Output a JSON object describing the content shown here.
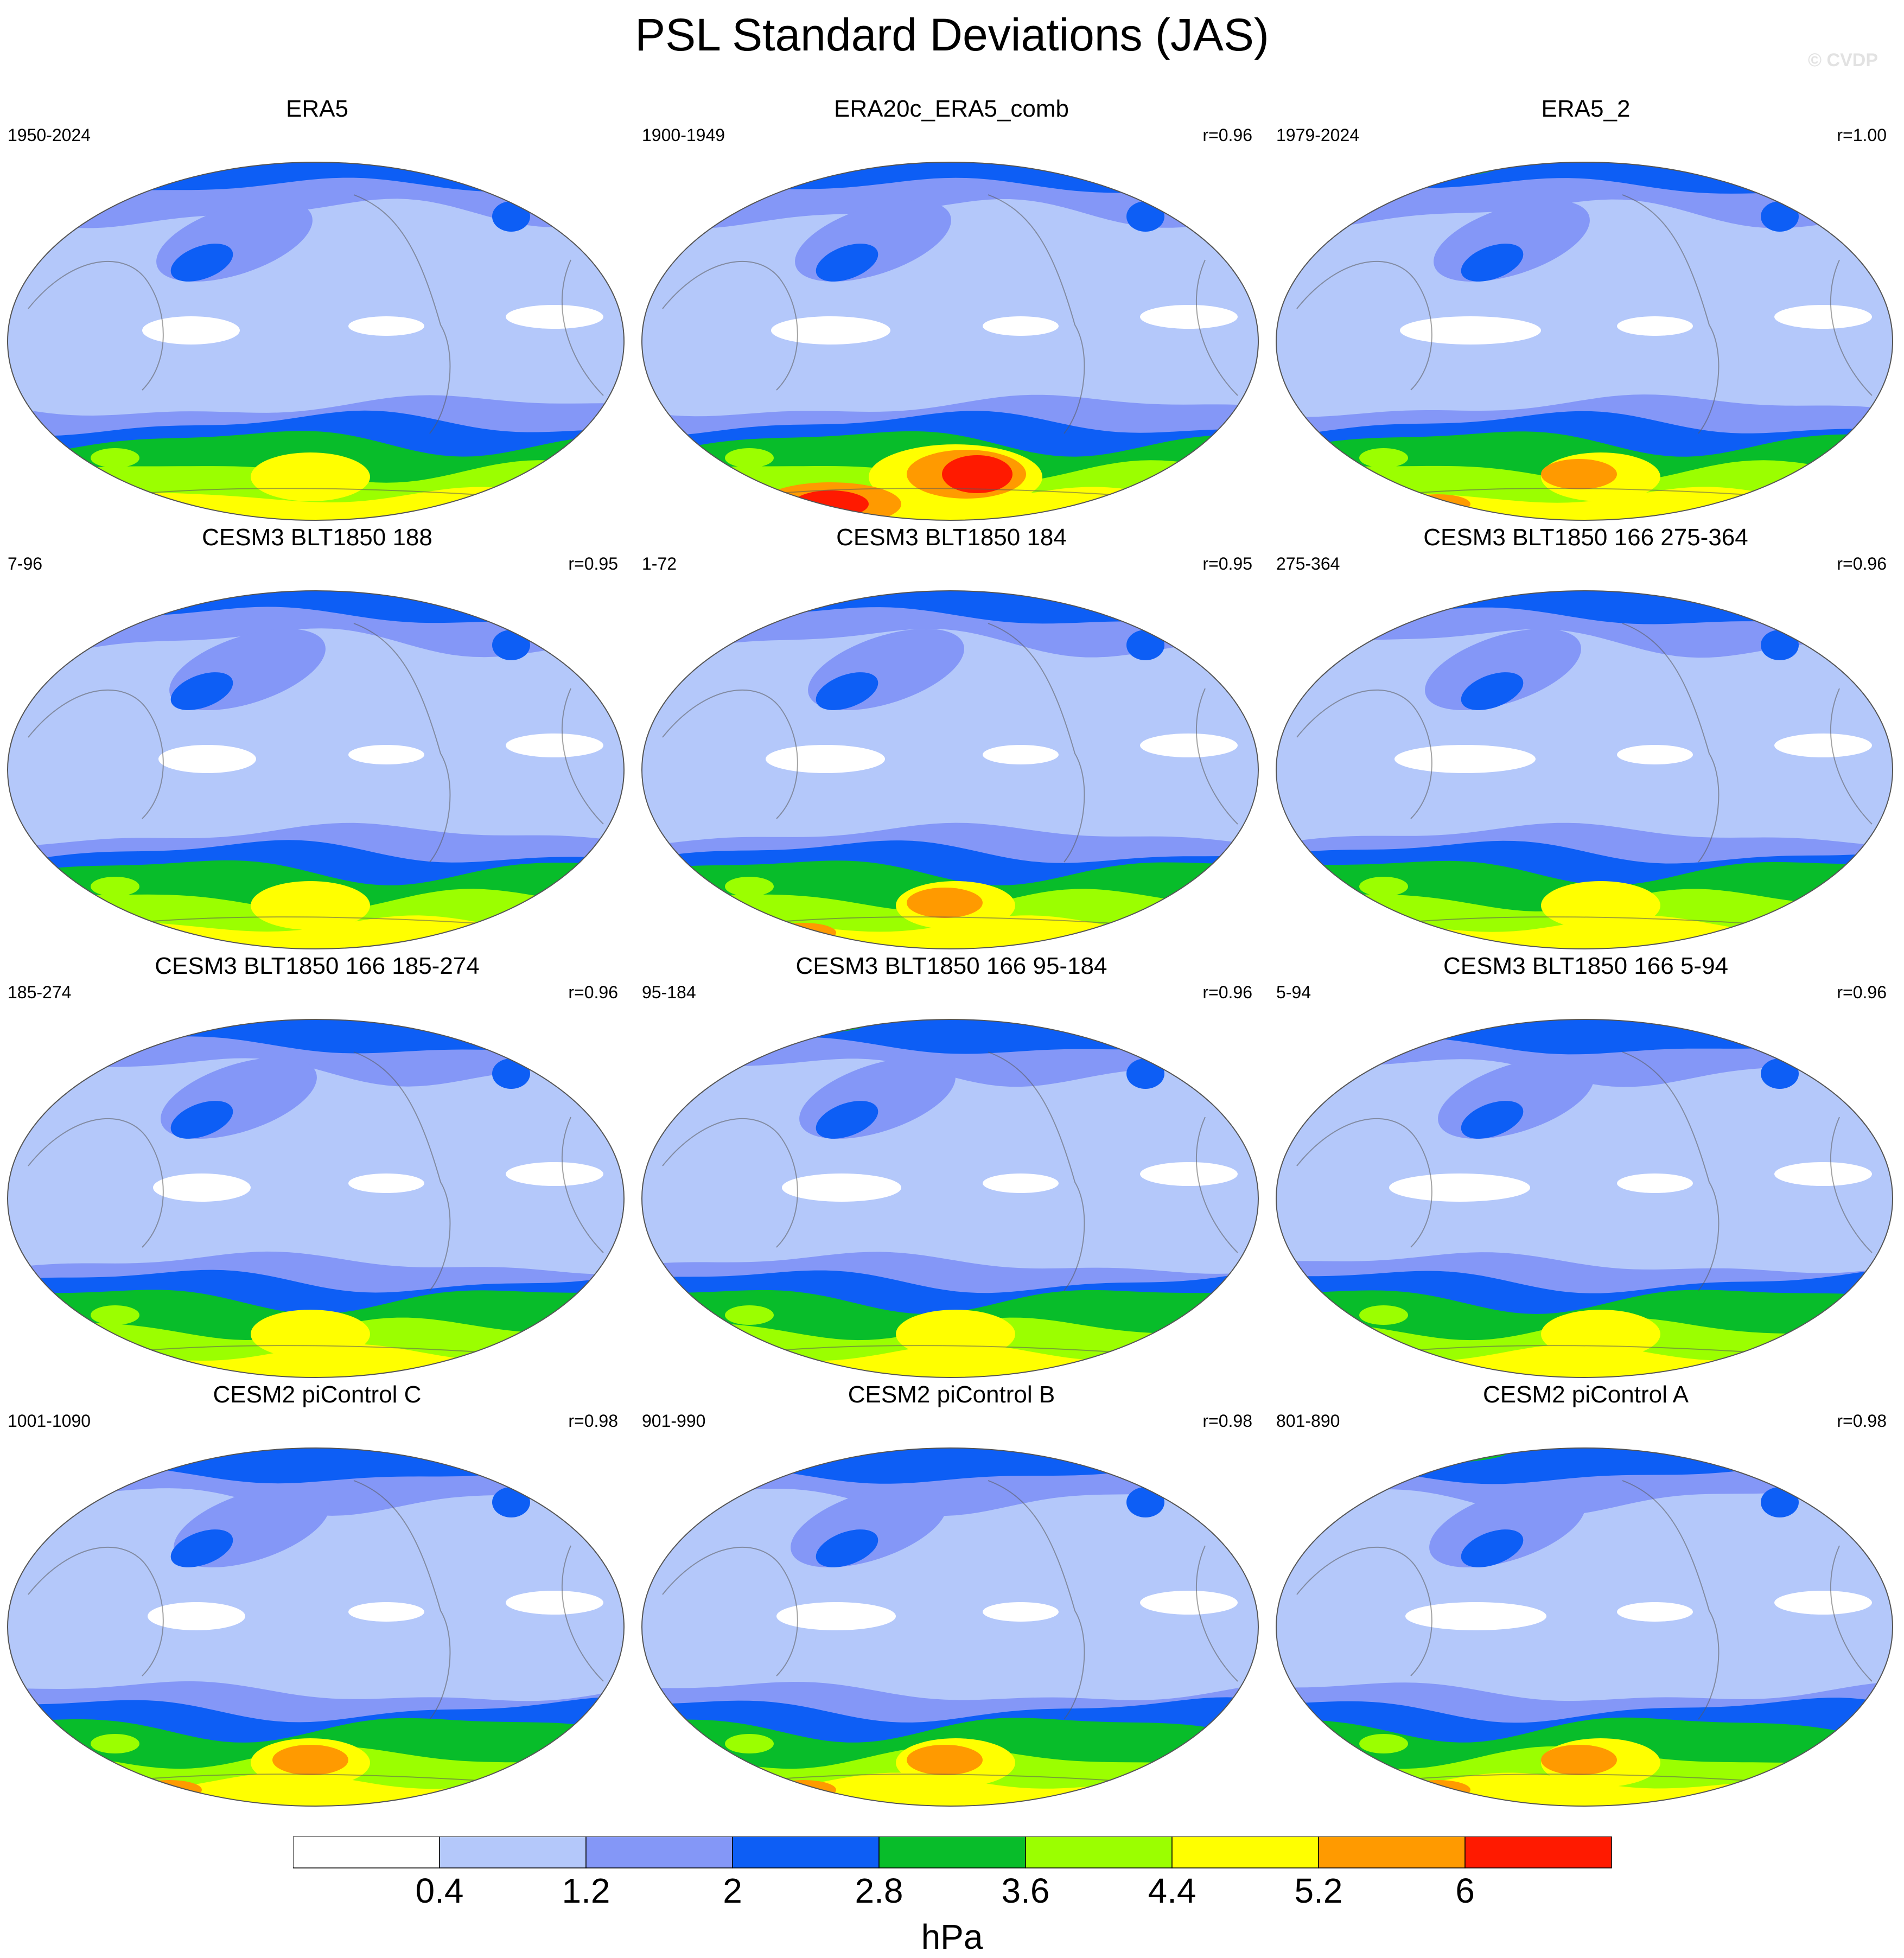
{
  "title": "PSL Standard Deviations (JAS)",
  "copyright": "© CVDP",
  "panels": [
    {
      "title": "ERA5",
      "left": "1950-2024",
      "right": "",
      "variant": 0
    },
    {
      "title": "ERA20c_ERA5_comb",
      "left": "1900-1949",
      "right": "r=0.96",
      "variant": 1
    },
    {
      "title": "ERA5_2",
      "left": "1979-2024",
      "right": "r=1.00",
      "variant": 2
    },
    {
      "title": "CESM3 BLT1850 188",
      "left": "7-96",
      "right": "r=0.95",
      "variant": 3
    },
    {
      "title": "CESM3 BLT1850 184",
      "left": "1-72",
      "right": "r=0.95",
      "variant": 4
    },
    {
      "title": "CESM3 BLT1850 166 275-364",
      "left": "275-364",
      "right": "r=0.96",
      "variant": 5
    },
    {
      "title": "CESM3 BLT1850 166 185-274",
      "left": "185-274",
      "right": "r=0.96",
      "variant": 6
    },
    {
      "title": "CESM3 BLT1850 166 95-184",
      "left": "95-184",
      "right": "r=0.96",
      "variant": 7
    },
    {
      "title": "CESM3 BLT1850 166 5-94",
      "left": "5-94",
      "right": "r=0.96",
      "variant": 8
    },
    {
      "title": "CESM2 piControl C",
      "left": "1001-1090",
      "right": "r=0.98",
      "variant": 9
    },
    {
      "title": "CESM2 piControl B",
      "left": "901-990",
      "right": "r=0.98",
      "variant": 10
    },
    {
      "title": "CESM2 piControl A",
      "left": "801-890",
      "right": "r=0.98",
      "variant": 11
    }
  ],
  "colorbar": {
    "colors": [
      "#ffffff",
      "#b4c8fa",
      "#8497f7",
      "#0d5ef5",
      "#08bd2a",
      "#9bff00",
      "#ffff00",
      "#ff9a00",
      "#ff1a00"
    ],
    "tick_labels": [
      "0.4",
      "1.2",
      "2",
      "2.8",
      "3.6",
      "4.4",
      "5.2",
      "6"
    ],
    "units": "hPa"
  }
}
